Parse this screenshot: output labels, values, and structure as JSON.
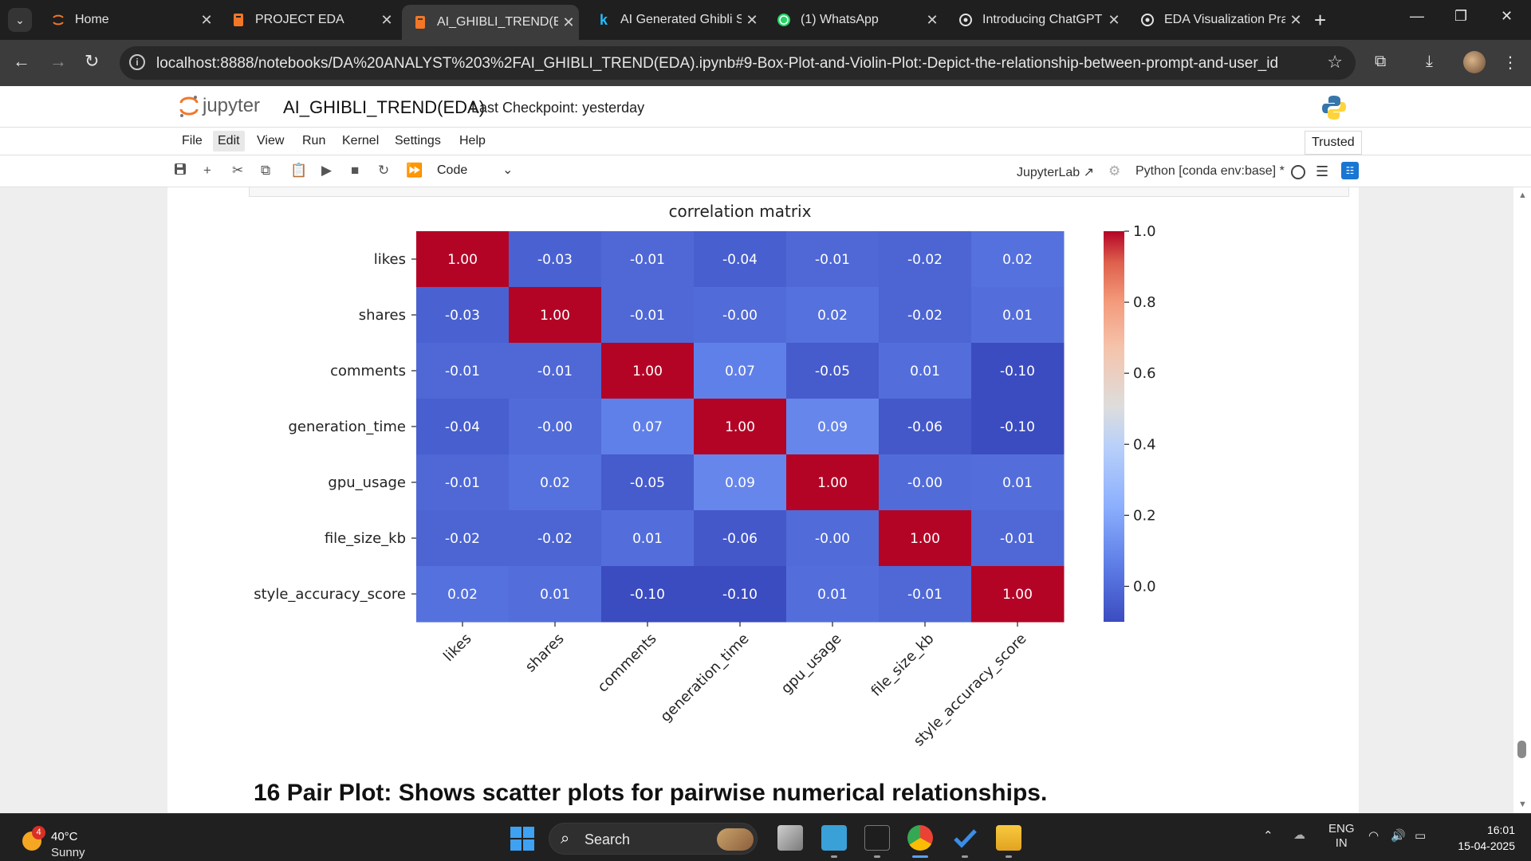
{
  "browser": {
    "tabs": [
      {
        "title": "Home",
        "icon": "jupyter-spinner-icon",
        "active": false
      },
      {
        "title": "PROJECT EDA",
        "icon": "notebook-icon",
        "active": false
      },
      {
        "title": "AI_GHIBLI_TREND(ED",
        "icon": "notebook-icon",
        "active": true
      },
      {
        "title": "AI Generated Ghibli S",
        "icon": "kaggle-icon",
        "active": false
      },
      {
        "title": "(1) WhatsApp",
        "icon": "whatsapp-icon",
        "active": false
      },
      {
        "title": "Introducing ChatGPT",
        "icon": "openai-icon",
        "active": false
      },
      {
        "title": "EDA Visualization Pra",
        "icon": "openai-icon",
        "active": false
      }
    ],
    "url": "localhost:8888/notebooks/DA%20ANALYST%203%2FAI_GHIBLI_TREND(EDA).ipynb#9-Box-Plot-and-Violin-Plot:-Depict-the-relationship-between-prompt-and-user_id"
  },
  "jupyter": {
    "logo_text": "jupyter",
    "notebook_title": "AI_GHIBLI_TREND(EDA)",
    "checkpoint": "Last Checkpoint: yesterday",
    "menu": [
      "File",
      "Edit",
      "View",
      "Run",
      "Kernel",
      "Settings",
      "Help"
    ],
    "trusted": "Trusted",
    "cell_type": "Code",
    "jupyterlab_link": "JupyterLab",
    "kernel": "Python [conda env:base] *"
  },
  "notebook": {
    "next_heading": "16 Pair Plot: Shows scatter plots for pairwise numerical relationships."
  },
  "chart_data": {
    "type": "heatmap",
    "title": "correlation matrix",
    "rows": [
      "likes",
      "shares",
      "comments",
      "generation_time",
      "gpu_usage",
      "file_size_kb",
      "style_accuracy_score"
    ],
    "columns": [
      "likes",
      "shares",
      "comments",
      "generation_time",
      "gpu_usage",
      "file_size_kb",
      "style_accuracy_score"
    ],
    "values": [
      [
        1.0,
        -0.03,
        -0.01,
        -0.04,
        -0.01,
        -0.02,
        0.02
      ],
      [
        -0.03,
        1.0,
        -0.01,
        -0.0,
        0.02,
        -0.02,
        0.01
      ],
      [
        -0.01,
        -0.01,
        1.0,
        0.07,
        -0.05,
        0.01,
        -0.1
      ],
      [
        -0.04,
        -0.0,
        0.07,
        1.0,
        0.09,
        -0.06,
        -0.1
      ],
      [
        -0.01,
        0.02,
        -0.05,
        0.09,
        1.0,
        -0.0,
        0.01
      ],
      [
        -0.02,
        -0.02,
        0.01,
        -0.06,
        -0.0,
        1.0,
        -0.01
      ],
      [
        0.02,
        0.01,
        -0.1,
        -0.1,
        0.01,
        -0.01,
        1.0
      ]
    ],
    "value_labels": [
      [
        "1.00",
        "-0.03",
        "-0.01",
        "-0.04",
        "-0.01",
        "-0.02",
        "0.02"
      ],
      [
        "-0.03",
        "1.00",
        "-0.01",
        "-0.00",
        "0.02",
        "-0.02",
        "0.01"
      ],
      [
        "-0.01",
        "-0.01",
        "1.00",
        "0.07",
        "-0.05",
        "0.01",
        "-0.10"
      ],
      [
        "-0.04",
        "-0.00",
        "0.07",
        "1.00",
        "0.09",
        "-0.06",
        "-0.10"
      ],
      [
        "-0.01",
        "0.02",
        "-0.05",
        "0.09",
        "1.00",
        "-0.00",
        "0.01"
      ],
      [
        "-0.02",
        "-0.02",
        "0.01",
        "-0.06",
        "-0.00",
        "1.00",
        "-0.01"
      ],
      [
        "0.02",
        "0.01",
        "-0.10",
        "-0.10",
        "0.01",
        "-0.01",
        "1.00"
      ]
    ],
    "colormap": "coolwarm",
    "colorbar": {
      "min": -0.1,
      "max": 1.0,
      "ticks": [
        0.0,
        0.2,
        0.4,
        0.6,
        0.8,
        1.0
      ],
      "tick_labels": [
        "0.0",
        "0.2",
        "0.4",
        "0.6",
        "0.8",
        "1.0"
      ]
    },
    "x_tick_rotation": 45
  },
  "taskbar": {
    "weather_temp": "40°C",
    "weather_cond": "Sunny",
    "weather_badge": "4",
    "search_label": "Search",
    "lang_line1": "ENG",
    "lang_line2": "IN",
    "time": "16:01",
    "date": "15-04-2025"
  }
}
